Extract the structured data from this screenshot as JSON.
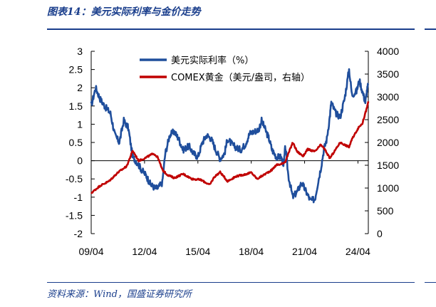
{
  "header": {
    "title": "图表14：美元实际利率与金价走势"
  },
  "footer": {
    "source": "资料来源：Wind，国盛证券研究所"
  },
  "chart_data": {
    "type": "line",
    "title": "图表14：美元实际利率与金价走势",
    "legend_position": "top-center",
    "grid": false,
    "x_axis": {
      "type": "date",
      "range": [
        "2009-04",
        "2024-11"
      ],
      "ticks": [
        "2009-04",
        "2012-04",
        "2015-04",
        "2018-04",
        "2021-04",
        "2024-04"
      ],
      "tick_labels": [
        "09/04",
        "12/04",
        "15/04",
        "18/04",
        "21/04",
        "24/04"
      ]
    },
    "y_axis_left": {
      "ylim": [
        -2,
        3
      ],
      "ticks": [
        -2,
        -1.5,
        -1,
        -0.5,
        0,
        0.5,
        1,
        1.5,
        2,
        2.5,
        3
      ],
      "tick_labels": [
        "-2",
        "-1.5",
        "-1",
        "-0.5",
        "0",
        "0.5",
        "1",
        "1.5",
        "2",
        "2.5",
        "3"
      ]
    },
    "y_axis_right": {
      "ylim": [
        0,
        4000
      ],
      "ticks": [
        0,
        500,
        1000,
        1500,
        2000,
        2500,
        3000,
        3500,
        4000
      ],
      "tick_labels": [
        "0",
        "500",
        "1000",
        "1500",
        "2000",
        "2500",
        "3000",
        "3500",
        "4000"
      ]
    },
    "series": [
      {
        "name": "美元实际利率（%）",
        "axis": "left",
        "color": "#1f4e9c",
        "points": [
          [
            "2009-04",
            1.5
          ],
          [
            "2009-07",
            2.0
          ],
          [
            "2009-10",
            1.7
          ],
          [
            "2010-01",
            1.5
          ],
          [
            "2010-05",
            1.3
          ],
          [
            "2010-08",
            0.7
          ],
          [
            "2010-11",
            0.5
          ],
          [
            "2011-02",
            1.1
          ],
          [
            "2011-05",
            0.9
          ],
          [
            "2011-08",
            0.1
          ],
          [
            "2011-11",
            -0.05
          ],
          [
            "2012-02",
            -0.25
          ],
          [
            "2012-05",
            -0.4
          ],
          [
            "2012-08",
            -0.65
          ],
          [
            "2012-11",
            -0.75
          ],
          [
            "2013-01",
            -0.75
          ],
          [
            "2013-04",
            -0.6
          ],
          [
            "2013-06",
            0.2
          ],
          [
            "2013-09",
            0.7
          ],
          [
            "2013-12",
            0.8
          ],
          [
            "2014-03",
            0.6
          ],
          [
            "2014-06",
            0.3
          ],
          [
            "2014-10",
            0.4
          ],
          [
            "2015-01",
            0.2
          ],
          [
            "2015-04",
            0.1
          ],
          [
            "2015-07",
            0.5
          ],
          [
            "2015-10",
            0.7
          ],
          [
            "2016-01",
            0.6
          ],
          [
            "2016-04",
            0.3
          ],
          [
            "2016-07",
            0.05
          ],
          [
            "2016-10",
            0.2
          ],
          [
            "2016-12",
            0.6
          ],
          [
            "2017-03",
            0.45
          ],
          [
            "2017-06",
            0.35
          ],
          [
            "2017-09",
            0.3
          ],
          [
            "2017-12",
            0.45
          ],
          [
            "2018-03",
            0.75
          ],
          [
            "2018-06",
            0.8
          ],
          [
            "2018-09",
            0.85
          ],
          [
            "2018-11",
            1.1
          ],
          [
            "2019-01",
            0.9
          ],
          [
            "2019-04",
            0.6
          ],
          [
            "2019-06",
            0.3
          ],
          [
            "2019-09",
            0.1
          ],
          [
            "2019-12",
            0.1
          ],
          [
            "2020-02",
            -0.1
          ],
          [
            "2020-03",
            0.4
          ],
          [
            "2020-05",
            -0.4
          ],
          [
            "2020-08",
            -1.0
          ],
          [
            "2020-11",
            -0.85
          ],
          [
            "2021-02",
            -0.6
          ],
          [
            "2021-05",
            -0.85
          ],
          [
            "2021-08",
            -1.1
          ],
          [
            "2021-11",
            -1.05
          ],
          [
            "2022-01",
            -0.6
          ],
          [
            "2022-03",
            -0.2
          ],
          [
            "2022-05",
            0.3
          ],
          [
            "2022-07",
            0.6
          ],
          [
            "2022-09",
            1.2
          ],
          [
            "2022-10",
            1.6
          ],
          [
            "2023-01",
            1.3
          ],
          [
            "2023-04",
            1.2
          ],
          [
            "2023-07",
            1.7
          ],
          [
            "2023-10",
            2.5
          ],
          [
            "2023-12",
            1.8
          ],
          [
            "2024-03",
            1.9
          ],
          [
            "2024-05",
            2.2
          ],
          [
            "2024-07",
            1.9
          ],
          [
            "2024-09",
            1.6
          ],
          [
            "2024-10",
            1.9
          ],
          [
            "2024-11",
            2.1
          ]
        ]
      },
      {
        "name": "COMEX黄金（美元/盎司，右轴）",
        "axis": "right",
        "color": "#c00000",
        "points": [
          [
            "2009-04",
            890
          ],
          [
            "2009-10",
            1050
          ],
          [
            "2010-04",
            1150
          ],
          [
            "2010-10",
            1340
          ],
          [
            "2011-04",
            1480
          ],
          [
            "2011-08",
            1820
          ],
          [
            "2011-12",
            1600
          ],
          [
            "2012-04",
            1650
          ],
          [
            "2012-10",
            1760
          ],
          [
            "2013-01",
            1670
          ],
          [
            "2013-04",
            1400
          ],
          [
            "2013-07",
            1300
          ],
          [
            "2013-12",
            1220
          ],
          [
            "2014-06",
            1310
          ],
          [
            "2014-12",
            1200
          ],
          [
            "2015-06",
            1180
          ],
          [
            "2015-12",
            1070
          ],
          [
            "2016-03",
            1240
          ],
          [
            "2016-07",
            1350
          ],
          [
            "2016-12",
            1150
          ],
          [
            "2017-06",
            1260
          ],
          [
            "2017-12",
            1300
          ],
          [
            "2018-04",
            1340
          ],
          [
            "2018-08",
            1200
          ],
          [
            "2018-12",
            1280
          ],
          [
            "2019-06",
            1400
          ],
          [
            "2019-09",
            1510
          ],
          [
            "2019-12",
            1520
          ],
          [
            "2020-03",
            1580
          ],
          [
            "2020-08",
            2000
          ],
          [
            "2020-11",
            1800
          ],
          [
            "2021-03",
            1700
          ],
          [
            "2021-06",
            1850
          ],
          [
            "2021-11",
            1800
          ],
          [
            "2022-03",
            1950
          ],
          [
            "2022-06",
            1830
          ],
          [
            "2022-09",
            1650
          ],
          [
            "2022-12",
            1800
          ],
          [
            "2023-04",
            2000
          ],
          [
            "2023-10",
            1900
          ],
          [
            "2023-12",
            2070
          ],
          [
            "2024-03",
            2250
          ],
          [
            "2024-05",
            2350
          ],
          [
            "2024-07",
            2420
          ],
          [
            "2024-09",
            2650
          ],
          [
            "2024-10",
            2750
          ],
          [
            "2024-11",
            2900
          ]
        ]
      }
    ]
  }
}
